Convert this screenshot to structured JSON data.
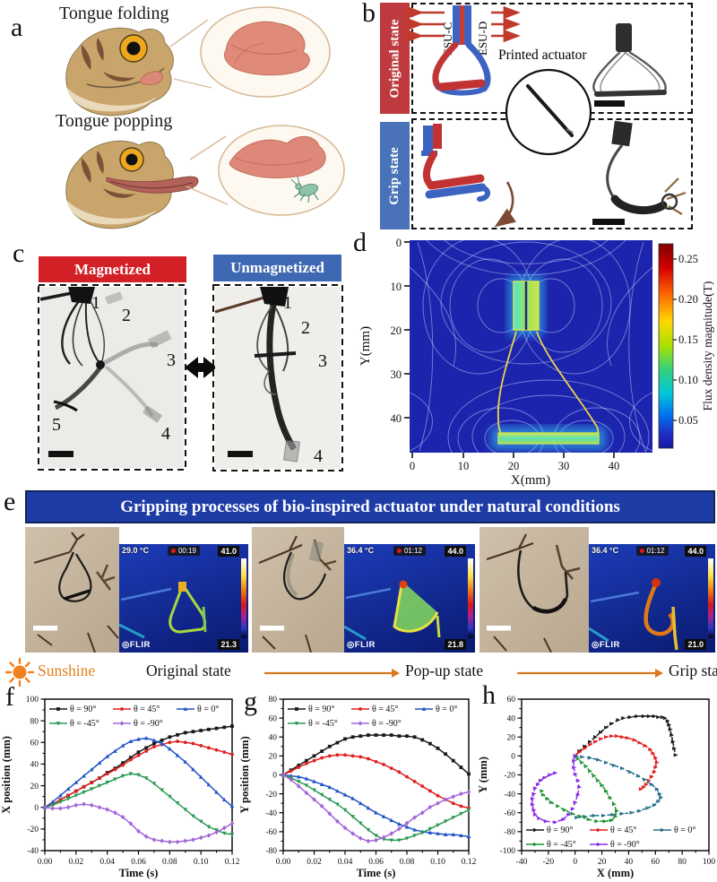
{
  "panel_a": {
    "letter": "a",
    "title_top": "Tongue folding",
    "title_bottom": "Tongue popping"
  },
  "panel_b": {
    "letter": "b",
    "original_label": "Original state",
    "grip_label": "Grip state",
    "esu_c": "ESU-C",
    "esu_d": "ESU-D",
    "printed_actuator": "Printed actuator"
  },
  "panel_c": {
    "letter": "c",
    "magnetized": "Magnetized",
    "unmagnetized": "Unmagnetized",
    "magnetized_markers": [
      "1",
      "2",
      "3",
      "4",
      "5"
    ],
    "unmagnetized_markers": [
      "1",
      "2",
      "3",
      "4"
    ]
  },
  "panel_d": {
    "letter": "d",
    "xlabel": "X(mm)",
    "ylabel": "Y(mm)",
    "x_ticks": [
      "0",
      "10",
      "20",
      "30",
      "40"
    ],
    "y_ticks": [
      "0",
      "10",
      "20",
      "30",
      "40"
    ],
    "colorbar_label": "Flux density magnitude(T)",
    "colorbar_ticks": [
      "0.25",
      "0.20",
      "0.15",
      "0.10",
      "0.05"
    ]
  },
  "panel_e": {
    "letter": "e",
    "banner": "Gripping processes of bio-inspired actuator under natural conditions",
    "frames": [
      {
        "temp": "29.0 °C",
        "timer": "00:19",
        "max": "41.0",
        "min": "21.3",
        "flir": "◎FLIR"
      },
      {
        "temp": "36.4 °C",
        "timer": "01:12",
        "max": "44.0",
        "min": "21.8",
        "flir": "◎FLIR"
      },
      {
        "temp": "36.4 °C",
        "timer": "01:12",
        "max": "44.0",
        "min": "21.0",
        "flir": "◎FLIR"
      }
    ],
    "sunshine": "Sunshine",
    "stages": [
      "Original state",
      "Pop-up state",
      "Grip state"
    ]
  },
  "chart_data": [
    {
      "id": "f",
      "letter": "f",
      "type": "line",
      "title": "",
      "xlabel": "Time (s)",
      "ylabel": "X position (mm)",
      "xlim": [
        0,
        0.12
      ],
      "ylim": [
        -40,
        100
      ],
      "x_ticks": [
        "0.00",
        "0.02",
        "0.04",
        "0.06",
        "0.08",
        "0.10",
        "0.12"
      ],
      "y_ticks": [
        "-40",
        "-20",
        "0",
        "20",
        "40",
        "60",
        "80",
        "100"
      ],
      "legend_pos": "top",
      "grid": false,
      "series": [
        {
          "name": "θ = 90°",
          "color": "#1a1a1a",
          "marker": "square",
          "dash": false,
          "x": [
            0,
            0.005,
            0.01,
            0.015,
            0.02,
            0.025,
            0.03,
            0.035,
            0.04,
            0.045,
            0.05,
            0.055,
            0.06,
            0.065,
            0.07,
            0.075,
            0.08,
            0.085,
            0.09,
            0.095,
            0.1,
            0.105,
            0.11,
            0.115,
            0.12
          ],
          "y": [
            0,
            3,
            7,
            11,
            15,
            19,
            23,
            27,
            32,
            36,
            41,
            46,
            51,
            55,
            59,
            62,
            65,
            67,
            69,
            70,
            71,
            72,
            73,
            74,
            75
          ]
        },
        {
          "name": "θ = 45°",
          "color": "#e02020",
          "marker": "circle",
          "dash": false,
          "x": [
            0,
            0.005,
            0.01,
            0.015,
            0.02,
            0.025,
            0.03,
            0.035,
            0.04,
            0.045,
            0.05,
            0.055,
            0.06,
            0.065,
            0.07,
            0.075,
            0.08,
            0.085,
            0.09,
            0.095,
            0.1,
            0.105,
            0.11,
            0.115,
            0.12
          ],
          "y": [
            0,
            3,
            7,
            11,
            15,
            19,
            23,
            27,
            31,
            35,
            39,
            44,
            48,
            52,
            56,
            58,
            60,
            61,
            60,
            59,
            57,
            55,
            53,
            51,
            49
          ]
        },
        {
          "name": "θ = 0°",
          "color": "#2254c8",
          "marker": "tri-up",
          "dash": false,
          "x": [
            0,
            0.005,
            0.01,
            0.015,
            0.02,
            0.025,
            0.03,
            0.035,
            0.04,
            0.045,
            0.05,
            0.055,
            0.06,
            0.065,
            0.07,
            0.075,
            0.08,
            0.085,
            0.09,
            0.095,
            0.1,
            0.105,
            0.11,
            0.115,
            0.12
          ],
          "y": [
            0,
            5,
            11,
            17,
            23,
            29,
            35,
            41,
            47,
            52,
            57,
            61,
            63,
            64,
            62,
            59,
            54,
            48,
            42,
            35,
            28,
            21,
            14,
            7,
            1
          ]
        },
        {
          "name": "θ = -45°",
          "color": "#2c9a56",
          "marker": "tri-down",
          "dash": false,
          "x": [
            0,
            0.005,
            0.01,
            0.015,
            0.02,
            0.025,
            0.03,
            0.035,
            0.04,
            0.045,
            0.05,
            0.055,
            0.06,
            0.065,
            0.07,
            0.075,
            0.08,
            0.085,
            0.09,
            0.095,
            0.1,
            0.105,
            0.11,
            0.115,
            0.12
          ],
          "y": [
            0,
            2,
            5,
            8,
            11,
            14,
            17,
            20,
            23,
            26,
            29,
            31,
            30,
            27,
            22,
            16,
            10,
            4,
            -2,
            -8,
            -13,
            -18,
            -21,
            -24,
            -25
          ]
        },
        {
          "name": "θ = -90°",
          "color": "#a266d8",
          "marker": "diamond",
          "dash": false,
          "x": [
            0,
            0.005,
            0.01,
            0.015,
            0.02,
            0.025,
            0.03,
            0.035,
            0.04,
            0.045,
            0.05,
            0.055,
            0.06,
            0.065,
            0.07,
            0.075,
            0.08,
            0.085,
            0.09,
            0.095,
            0.1,
            0.105,
            0.11,
            0.115,
            0.12
          ],
          "y": [
            0,
            -1,
            -1,
            0,
            2,
            3,
            2,
            0,
            -2,
            -5,
            -9,
            -15,
            -22,
            -27,
            -30,
            -31,
            -32,
            -32,
            -31,
            -30,
            -28,
            -26,
            -23,
            -19,
            -15
          ]
        }
      ]
    },
    {
      "id": "g",
      "letter": "g",
      "type": "line",
      "title": "",
      "xlabel": "Time (s)",
      "ylabel": "Y position (mm)",
      "xlim": [
        0,
        0.12
      ],
      "ylim": [
        -80,
        80
      ],
      "x_ticks": [
        "0.00",
        "0.02",
        "0.04",
        "0.06",
        "0.08",
        "0.10",
        "0.12"
      ],
      "y_ticks": [
        "-80",
        "-60",
        "-40",
        "-20",
        "0",
        "20",
        "40",
        "60",
        "80"
      ],
      "legend_pos": "top",
      "grid": false,
      "series": [
        {
          "name": "θ = 90°",
          "color": "#1a1a1a",
          "marker": "square",
          "dash": false,
          "x": [
            0,
            0.005,
            0.01,
            0.015,
            0.02,
            0.025,
            0.03,
            0.035,
            0.04,
            0.045,
            0.05,
            0.055,
            0.06,
            0.065,
            0.07,
            0.075,
            0.08,
            0.085,
            0.09,
            0.095,
            0.1,
            0.105,
            0.11,
            0.115,
            0.12
          ],
          "y": [
            0,
            5,
            10,
            15,
            20,
            25,
            30,
            34,
            38,
            40,
            41,
            42,
            42,
            42,
            42,
            41,
            41,
            40,
            37,
            33,
            28,
            22,
            15,
            8,
            1
          ]
        },
        {
          "name": "θ = 45°",
          "color": "#e02020",
          "marker": "circle",
          "dash": false,
          "x": [
            0,
            0.005,
            0.01,
            0.015,
            0.02,
            0.025,
            0.03,
            0.035,
            0.04,
            0.045,
            0.05,
            0.055,
            0.06,
            0.065,
            0.07,
            0.075,
            0.08,
            0.085,
            0.09,
            0.095,
            0.1,
            0.105,
            0.11,
            0.115,
            0.12
          ],
          "y": [
            0,
            4,
            8,
            12,
            15,
            18,
            20,
            21,
            21,
            20,
            19,
            17,
            14,
            11,
            7,
            3,
            -2,
            -7,
            -12,
            -17,
            -22,
            -26,
            -30,
            -33,
            -35
          ]
        },
        {
          "name": "θ = 0°",
          "color": "#2254c8",
          "marker": "tri-up",
          "dash": false,
          "x": [
            0,
            0.005,
            0.01,
            0.015,
            0.02,
            0.025,
            0.03,
            0.035,
            0.04,
            0.045,
            0.05,
            0.055,
            0.06,
            0.065,
            0.07,
            0.075,
            0.08,
            0.085,
            0.09,
            0.095,
            0.1,
            0.105,
            0.11,
            0.115,
            0.12
          ],
          "y": [
            0,
            -1,
            -2,
            -4,
            -7,
            -10,
            -13,
            -17,
            -21,
            -25,
            -30,
            -35,
            -40,
            -44,
            -48,
            -52,
            -55,
            -58,
            -60,
            -61,
            -62,
            -63,
            -63,
            -64,
            -65
          ]
        },
        {
          "name": "θ = -45°",
          "color": "#2c9a56",
          "marker": "tri-down",
          "dash": false,
          "x": [
            0,
            0.005,
            0.01,
            0.015,
            0.02,
            0.025,
            0.03,
            0.035,
            0.04,
            0.045,
            0.05,
            0.055,
            0.06,
            0.065,
            0.07,
            0.075,
            0.08,
            0.085,
            0.09,
            0.095,
            0.1,
            0.105,
            0.11,
            0.115,
            0.12
          ],
          "y": [
            0,
            -3,
            -7,
            -11,
            -16,
            -21,
            -26,
            -31,
            -37,
            -44,
            -51,
            -58,
            -64,
            -68,
            -69,
            -69,
            -67,
            -64,
            -61,
            -57,
            -53,
            -49,
            -45,
            -41,
            -37
          ]
        },
        {
          "name": "θ = -90°",
          "color": "#a266d8",
          "marker": "diamond",
          "dash": false,
          "x": [
            0,
            0.005,
            0.01,
            0.015,
            0.02,
            0.025,
            0.03,
            0.035,
            0.04,
            0.045,
            0.05,
            0.055,
            0.06,
            0.065,
            0.07,
            0.075,
            0.08,
            0.085,
            0.09,
            0.095,
            0.1,
            0.105,
            0.11,
            0.115,
            0.12
          ],
          "y": [
            0,
            -5,
            -12,
            -19,
            -26,
            -33,
            -41,
            -49,
            -56,
            -62,
            -67,
            -70,
            -69,
            -66,
            -62,
            -57,
            -51,
            -45,
            -40,
            -34,
            -30,
            -26,
            -23,
            -20,
            -18
          ]
        }
      ]
    },
    {
      "id": "h",
      "letter": "h",
      "type": "scatter",
      "title": "",
      "xlabel": "X (mm)",
      "ylabel": "Y (mm)",
      "xlim": [
        -40,
        100
      ],
      "ylim": [
        -100,
        60
      ],
      "x_ticks": [
        "-40",
        "-20",
        "0",
        "20",
        "40",
        "60",
        "80",
        "100"
      ],
      "y_ticks": [
        "-100",
        "-80",
        "-60",
        "-40",
        "-20",
        "0",
        "20",
        "40",
        "60"
      ],
      "legend_pos": "bottom",
      "grid": false,
      "series": [
        {
          "name": "θ = 90°",
          "color": "#1a1a1a",
          "marker": "tri-right",
          "dash": true,
          "x": [
            0,
            3,
            7,
            11,
            15,
            19,
            23,
            27,
            32,
            36,
            41,
            46,
            51,
            55,
            59,
            62,
            65,
            67,
            69,
            70,
            71,
            72,
            73,
            74,
            75
          ],
          "y": [
            0,
            5,
            10,
            15,
            20,
            25,
            30,
            34,
            38,
            40,
            41,
            42,
            42,
            42,
            42,
            41,
            41,
            40,
            37,
            33,
            28,
            22,
            15,
            8,
            1
          ]
        },
        {
          "name": "θ = 45°",
          "color": "#e02020",
          "marker": "tri-right",
          "dash": true,
          "x": [
            0,
            3,
            7,
            11,
            15,
            19,
            23,
            27,
            31,
            35,
            39,
            44,
            48,
            52,
            56,
            58,
            60,
            61,
            60,
            59,
            57,
            55,
            53,
            51,
            49
          ],
          "y": [
            0,
            4,
            8,
            12,
            15,
            18,
            20,
            21,
            21,
            20,
            19,
            17,
            14,
            11,
            7,
            3,
            -2,
            -7,
            -12,
            -17,
            -22,
            -26,
            -30,
            -33,
            -35
          ]
        },
        {
          "name": "θ = 0°",
          "color": "#26708e",
          "marker": "tri-right",
          "dash": true,
          "x": [
            0,
            5,
            11,
            17,
            23,
            29,
            35,
            41,
            47,
            52,
            57,
            61,
            63,
            64,
            62,
            59,
            54,
            48,
            42,
            35,
            28,
            21,
            14,
            7,
            1
          ],
          "y": [
            0,
            -1,
            -2,
            -4,
            -7,
            -10,
            -13,
            -17,
            -21,
            -25,
            -30,
            -35,
            -40,
            -44,
            -48,
            -52,
            -55,
            -58,
            -60,
            -61,
            -62,
            -63,
            -63,
            -64,
            -65
          ]
        },
        {
          "name": "θ = -45°",
          "color": "#1f9434",
          "marker": "tri-right",
          "dash": true,
          "x": [
            0,
            2,
            5,
            8,
            11,
            14,
            17,
            20,
            23,
            26,
            29,
            31,
            30,
            27,
            22,
            16,
            10,
            4,
            -2,
            -8,
            -13,
            -18,
            -21,
            -24,
            -25
          ],
          "y": [
            0,
            -3,
            -7,
            -11,
            -16,
            -21,
            -26,
            -31,
            -37,
            -44,
            -51,
            -58,
            -64,
            -68,
            -69,
            -69,
            -67,
            -64,
            -61,
            -57,
            -53,
            -49,
            -45,
            -41,
            -37
          ]
        },
        {
          "name": "θ = -90°",
          "color": "#8a2be2",
          "marker": "tri-right",
          "dash": true,
          "x": [
            0,
            -1,
            -1,
            0,
            2,
            3,
            2,
            0,
            -2,
            -5,
            -9,
            -15,
            -22,
            -27,
            -30,
            -31,
            -32,
            -32,
            -31,
            -30,
            -28,
            -26,
            -23,
            -19,
            -15
          ],
          "y": [
            0,
            -5,
            -12,
            -19,
            -26,
            -33,
            -41,
            -49,
            -56,
            -62,
            -67,
            -70,
            -69,
            -66,
            -62,
            -57,
            -51,
            -45,
            -40,
            -34,
            -30,
            -26,
            -23,
            -20,
            -18
          ]
        }
      ]
    }
  ]
}
